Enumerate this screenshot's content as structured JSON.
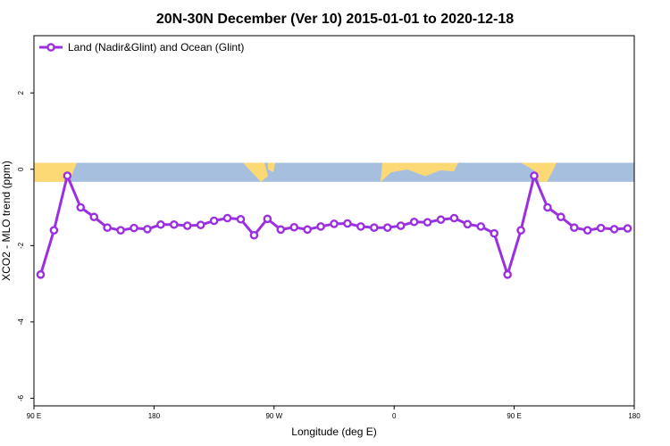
{
  "chart_data": {
    "type": "line",
    "title": "20N-30N December (Ver 10)   2015-01-01 to 2020-12-18",
    "xlabel": "Longitude (deg E)",
    "ylabel": "XCO2 - MLO trend (ppm)",
    "xlim": [
      90,
      540
    ],
    "ylim": [
      -6.2,
      3.5
    ],
    "xticks": [
      {
        "value": 90,
        "label": "90 E"
      },
      {
        "value": 180,
        "label": "180"
      },
      {
        "value": 270,
        "label": "90 W"
      },
      {
        "value": 360,
        "label": "0"
      },
      {
        "value": 450,
        "label": "90 E"
      },
      {
        "value": 540,
        "label": "180"
      }
    ],
    "yticks": [
      {
        "value": 2,
        "label": "2"
      },
      {
        "value": 0,
        "label": "0"
      },
      {
        "value": -2,
        "label": "-2"
      },
      {
        "value": -4,
        "label": "-4"
      },
      {
        "value": -6,
        "label": "-6"
      }
    ],
    "grid": false,
    "legend_position": "top-left",
    "band": {
      "ymin": -0.33,
      "ymax": 0.17,
      "ocean_color": "#a7bfde",
      "land_color": "#fdd975"
    },
    "series": [
      {
        "name": "Land (Nadir&Glint) and Ocean (Glint)",
        "color": "#9b30e0",
        "x": [
          95,
          105,
          115,
          125,
          135,
          145,
          155,
          165,
          175,
          185,
          195,
          205,
          215,
          225,
          235,
          245,
          255,
          265,
          275,
          285,
          295,
          305,
          315,
          325,
          335,
          345,
          355,
          365,
          375,
          385,
          395,
          405,
          415,
          425,
          435,
          445,
          455,
          465,
          475,
          485,
          495,
          505,
          515,
          525,
          535
        ],
        "y": [
          -2.76,
          -1.6,
          -0.17,
          -1.0,
          -1.25,
          -1.53,
          -1.6,
          -1.54,
          -1.57,
          -1.45,
          -1.45,
          -1.48,
          -1.46,
          -1.35,
          -1.28,
          -1.31,
          -1.73,
          -1.3,
          -1.58,
          -1.52,
          -1.58,
          -1.5,
          -1.43,
          -1.42,
          -1.5,
          -1.53,
          -1.53,
          -1.48,
          -1.38,
          -1.39,
          -1.32,
          -1.28,
          -1.44,
          -1.5,
          -1.68,
          -2.76,
          -1.6,
          -0.17,
          -1.0,
          -1.25,
          -1.53,
          -1.6,
          -1.54,
          -1.57,
          -1.55
        ]
      }
    ]
  }
}
